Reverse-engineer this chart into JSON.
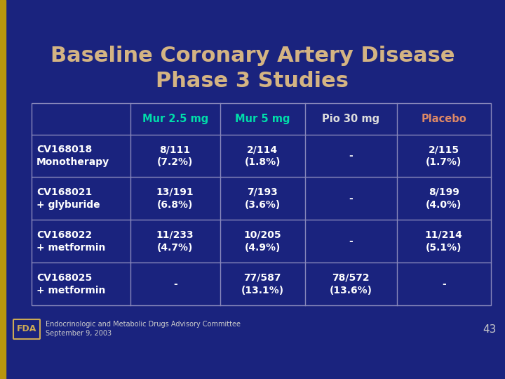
{
  "title_line1": "Baseline Coronary Artery Disease",
  "title_line2": "Phase 3 Studies",
  "title_color": "#D4B483",
  "bg_color": "#1a237e",
  "border_color": "#8888bb",
  "header_row": [
    "",
    "Mur 2.5 mg",
    "Mur 5 mg",
    "Pio 30 mg",
    "Placebo"
  ],
  "header_colors": [
    "#ffffff",
    "#00ddaa",
    "#00ddaa",
    "#dddddd",
    "#dd8866"
  ],
  "rows": [
    [
      "CV168018\nMonotherapy",
      "8/111\n(7.2%)",
      "2/114\n(1.8%)",
      "-",
      "2/115\n(1.7%)"
    ],
    [
      "CV168021\n+ glyburide",
      "13/191\n(6.8%)",
      "7/193\n(3.6%)",
      "-",
      "8/199\n(4.0%)"
    ],
    [
      "CV168022\n+ metformin",
      "11/233\n(4.7%)",
      "10/205\n(4.9%)",
      "-",
      "11/214\n(5.1%)"
    ],
    [
      "CV168025\n+ metformin",
      "-",
      "77/587\n(13.1%)",
      "78/572\n(13.6%)",
      "-"
    ]
  ],
  "cell_text_color": "#ffffff",
  "footer_text1": "Endocrinologic and Metabolic Drugs Advisory Committee",
  "footer_text2": "September 9, 2003",
  "footer_color": "#cccccc",
  "page_number": "43",
  "left_bar_color": "#b8960e",
  "left_bar_width": 8
}
